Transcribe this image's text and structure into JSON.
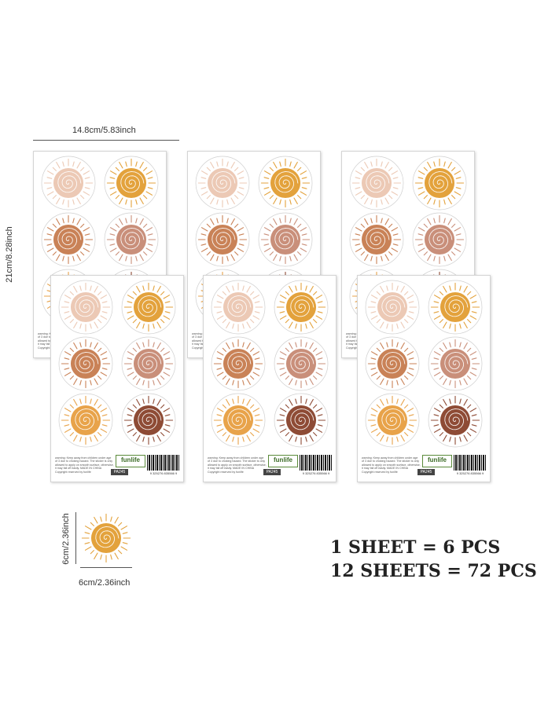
{
  "dimensions": {
    "sheet_width": "14.8cm/5.83inch",
    "sheet_height": "21cm/8.28inch",
    "sticker_height": "6cm/2.36inch",
    "sticker_width": "6cm/2.36inch"
  },
  "sheet_text": {
    "warning": "warning: Keep away from children under age of 3 due to choking hazard. The sticker is only allowed to apply on smooth surface, otherwise, it may fall off easily. MADE IN CHINA Copyright reserved by funlife",
    "brand": "funlife",
    "code": "PA245",
    "barcode": "9 325276 835566 9"
  },
  "sun_colors": [
    "#ecc9b5",
    "#e3a23c",
    "#c98257",
    "#c98f7a",
    "#e8a34a",
    "#8e4b35"
  ],
  "summary": {
    "line1": "1 SHEET = 6 PCS",
    "line2": "12 SHEETS = 72 PCS"
  }
}
